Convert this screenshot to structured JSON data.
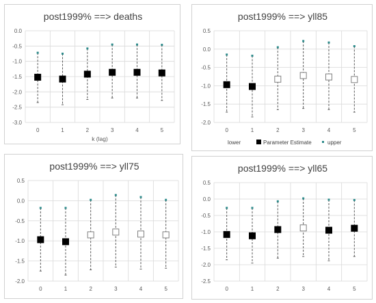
{
  "chart_data": [
    {
      "type": "scatter",
      "title": "post1999% ==> deaths",
      "xlabel": "k (lag)",
      "ylabel": "",
      "categories": [
        "0",
        "1",
        "2",
        "3",
        "4",
        "5"
      ],
      "yticks": [
        "0.0",
        "-0.5",
        "-1.0",
        "-1.5",
        "-2.0",
        "-2.5",
        "-3.0"
      ],
      "ylim": [
        -3.0,
        0.0
      ],
      "grid": true,
      "legend": [],
      "series": [
        {
          "name": "lower",
          "values": [
            -2.35,
            -2.42,
            -2.25,
            -2.2,
            -2.2,
            -2.28
          ]
        },
        {
          "name": "Parameter Estimate",
          "values": [
            -1.52,
            -1.58,
            -1.42,
            -1.36,
            -1.36,
            -1.38
          ],
          "filled": [
            true,
            true,
            true,
            true,
            true,
            true
          ]
        },
        {
          "name": "upper",
          "values": [
            -0.72,
            -0.75,
            -0.58,
            -0.45,
            -0.45,
            -0.46
          ]
        }
      ]
    },
    {
      "type": "scatter",
      "title": "post1999% ==> yll85",
      "xlabel": "",
      "ylabel": "",
      "categories": [
        "0",
        "1",
        "2",
        "3",
        "4",
        "5"
      ],
      "yticks": [
        "0.5",
        "0.0",
        "-0.5",
        "-1.0",
        "-1.5",
        "-2.0"
      ],
      "ylim": [
        -2.0,
        0.5
      ],
      "grid": true,
      "legend": [
        "lower",
        "Parameter Estimate",
        "upper"
      ],
      "series": [
        {
          "name": "lower",
          "values": [
            -1.72,
            -1.85,
            -1.65,
            -1.62,
            -1.65,
            -1.72
          ]
        },
        {
          "name": "Parameter Estimate",
          "values": [
            -0.97,
            -1.02,
            -0.82,
            -0.72,
            -0.76,
            -0.83
          ],
          "filled": [
            true,
            true,
            false,
            false,
            false,
            false
          ]
        },
        {
          "name": "upper",
          "values": [
            -0.15,
            -0.18,
            0.05,
            0.22,
            0.18,
            0.08
          ]
        }
      ]
    },
    {
      "type": "scatter",
      "title": "post1999% ==> yll75",
      "xlabel": "",
      "ylabel": "",
      "categories": [
        "0",
        "1",
        "2",
        "3",
        "4",
        "5"
      ],
      "yticks": [
        "0.5",
        "0.0",
        "-0.5",
        "-1.0",
        "-1.5",
        "-2.0"
      ],
      "ylim": [
        -2.0,
        0.5
      ],
      "grid": true,
      "legend": [],
      "series": [
        {
          "name": "lower",
          "values": [
            -1.75,
            -1.85,
            -1.72,
            -1.65,
            -1.7,
            -1.68
          ]
        },
        {
          "name": "Parameter Estimate",
          "values": [
            -0.97,
            -1.02,
            -0.85,
            -0.78,
            -0.83,
            -0.85
          ],
          "filled": [
            true,
            true,
            false,
            false,
            false,
            false
          ]
        },
        {
          "name": "upper",
          "values": [
            -0.18,
            -0.18,
            0.02,
            0.14,
            0.09,
            0.02
          ]
        }
      ]
    },
    {
      "type": "scatter",
      "title": "post1999% ==> yll65",
      "xlabel": "",
      "ylabel": "",
      "categories": [
        "0",
        "1",
        "2",
        "3",
        "4",
        "5"
      ],
      "yticks": [
        "0.5",
        "0.0",
        "-0.5",
        "-1.0",
        "-1.5",
        "-2.0",
        "-2.5"
      ],
      "ylim": [
        -2.5,
        0.5
      ],
      "grid": true,
      "legend": [],
      "series": [
        {
          "name": "lower",
          "values": [
            -1.85,
            -1.95,
            -1.8,
            -1.75,
            -1.88,
            -1.75
          ]
        },
        {
          "name": "Parameter Estimate",
          "values": [
            -1.08,
            -1.12,
            -0.93,
            -0.88,
            -0.95,
            -0.89
          ],
          "filled": [
            true,
            true,
            true,
            false,
            true,
            true
          ]
        },
        {
          "name": "upper",
          "values": [
            -0.27,
            -0.27,
            -0.07,
            0.02,
            -0.02,
            -0.03
          ]
        }
      ]
    }
  ],
  "colors": {
    "estimate": "#000000",
    "upper_marker": "#2e8b8b",
    "ci_line": "#595959",
    "grid": "#d9d9d9",
    "border": "#d0d0d0"
  }
}
